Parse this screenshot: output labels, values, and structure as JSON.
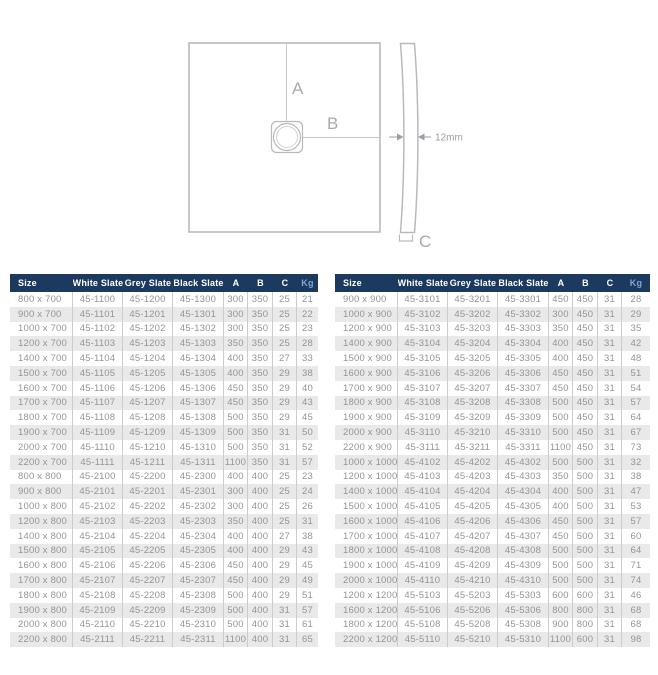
{
  "diagram": {
    "label_a": "A",
    "label_b": "B",
    "label_c": "C",
    "thickness_label": "12mm"
  },
  "table_columns": [
    "Size",
    "White Slate",
    "Grey Slate",
    "Black Slate",
    "A",
    "B",
    "C",
    "Kg"
  ],
  "tables": {
    "left": {
      "rows": [
        [
          "800 x 700",
          "45-1100",
          "45-1200",
          "45-1300",
          "300",
          "350",
          "25",
          "21"
        ],
        [
          "900 x 700",
          "45-1101",
          "45-1201",
          "45-1301",
          "300",
          "350",
          "25",
          "22"
        ],
        [
          "1000 x 700",
          "45-1102",
          "45-1202",
          "45-1302",
          "300",
          "350",
          "25",
          "23"
        ],
        [
          "1200 x 700",
          "45-1103",
          "45-1203",
          "45-1303",
          "350",
          "350",
          "25",
          "28"
        ],
        [
          "1400 x 700",
          "45-1104",
          "45-1204",
          "45-1304",
          "400",
          "350",
          "27",
          "33"
        ],
        [
          "1500 x 700",
          "45-1105",
          "45-1205",
          "45-1305",
          "400",
          "350",
          "29",
          "38"
        ],
        [
          "1600 x 700",
          "45-1106",
          "45-1206",
          "45-1306",
          "450",
          "350",
          "29",
          "40"
        ],
        [
          "1700 x 700",
          "45-1107",
          "45-1207",
          "45-1307",
          "450",
          "350",
          "29",
          "43"
        ],
        [
          "1800 x 700",
          "45-1108",
          "45-1208",
          "45-1308",
          "500",
          "350",
          "29",
          "45"
        ],
        [
          "1900 x 700",
          "45-1109",
          "45-1209",
          "45-1309",
          "500",
          "350",
          "31",
          "50"
        ],
        [
          "2000 x 700",
          "45-1110",
          "45-1210",
          "45-1310",
          "500",
          "350",
          "31",
          "52"
        ],
        [
          "2200 x 700",
          "45-1111",
          "45-1211",
          "45-1311",
          "1100",
          "350",
          "31",
          "57"
        ],
        [
          "800 x 800",
          "45-2100",
          "45-2200",
          "45-2300",
          "400",
          "400",
          "25",
          "23"
        ],
        [
          "900 x 800",
          "45-2101",
          "45-2201",
          "45-2301",
          "300",
          "400",
          "25",
          "24"
        ],
        [
          "1000 x 800",
          "45-2102",
          "45-2202",
          "45-2302",
          "300",
          "400",
          "25",
          "26"
        ],
        [
          "1200 x 800",
          "45-2103",
          "45-2203",
          "45-2303",
          "350",
          "400",
          "25",
          "31"
        ],
        [
          "1400 x 800",
          "45-2104",
          "45-2204",
          "45-2304",
          "400",
          "400",
          "27",
          "38"
        ],
        [
          "1500 x 800",
          "45-2105",
          "45-2205",
          "45-2305",
          "400",
          "400",
          "29",
          "43"
        ],
        [
          "1600 x 800",
          "45-2106",
          "45-2206",
          "45-2306",
          "450",
          "400",
          "29",
          "45"
        ],
        [
          "1700 x 800",
          "45-2107",
          "45-2207",
          "45-2307",
          "450",
          "400",
          "29",
          "49"
        ],
        [
          "1800 x 800",
          "45-2108",
          "45-2208",
          "45-2308",
          "500",
          "400",
          "29",
          "51"
        ],
        [
          "1900 x 800",
          "45-2109",
          "45-2209",
          "45-2309",
          "500",
          "400",
          "31",
          "57"
        ],
        [
          "2000 x 800",
          "45-2110",
          "45-2210",
          "45-2310",
          "500",
          "400",
          "31",
          "61"
        ],
        [
          "2200 x 800",
          "45-2111",
          "45-2211",
          "45-2311",
          "1100",
          "400",
          "31",
          "65"
        ]
      ]
    },
    "right": {
      "rows": [
        [
          "900 x 900",
          "45-3101",
          "45-3201",
          "45-3301",
          "450",
          "450",
          "31",
          "28"
        ],
        [
          "1000 x 900",
          "45-3102",
          "45-3202",
          "45-3302",
          "300",
          "450",
          "31",
          "29"
        ],
        [
          "1200 x 900",
          "45-3103",
          "45-3203",
          "45-3303",
          "350",
          "450",
          "31",
          "35"
        ],
        [
          "1400 x 900",
          "45-3104",
          "45-3204",
          "45-3304",
          "400",
          "450",
          "31",
          "42"
        ],
        [
          "1500 x 900",
          "45-3105",
          "45-3205",
          "45-3305",
          "400",
          "450",
          "31",
          "48"
        ],
        [
          "1600 x 900",
          "45-3106",
          "45-3206",
          "45-3306",
          "450",
          "450",
          "31",
          "51"
        ],
        [
          "1700 x 900",
          "45-3107",
          "45-3207",
          "45-3307",
          "450",
          "450",
          "31",
          "54"
        ],
        [
          "1800 x 900",
          "45-3108",
          "45-3208",
          "45-3308",
          "500",
          "450",
          "31",
          "57"
        ],
        [
          "1900 x 900",
          "45-3109",
          "45-3209",
          "45-3309",
          "500",
          "450",
          "31",
          "64"
        ],
        [
          "2000 x 900",
          "45-3110",
          "45-3210",
          "45-3310",
          "500",
          "450",
          "31",
          "67"
        ],
        [
          "2200 x 900",
          "45-3111",
          "45-3211",
          "45-3311",
          "1100",
          "450",
          "31",
          "73"
        ],
        [
          "1000 x 1000",
          "45-4102",
          "45-4202",
          "45-4302",
          "500",
          "500",
          "31",
          "32"
        ],
        [
          "1200 x 1000",
          "45-4103",
          "45-4203",
          "45-4303",
          "350",
          "500",
          "31",
          "38"
        ],
        [
          "1400 x 1000",
          "45-4104",
          "45-4204",
          "45-4304",
          "400",
          "500",
          "31",
          "47"
        ],
        [
          "1500 x 1000",
          "45-4105",
          "45-4205",
          "45-4305",
          "400",
          "500",
          "31",
          "53"
        ],
        [
          "1600 x 1000",
          "45-4106",
          "45-4206",
          "45-4306",
          "450",
          "500",
          "31",
          "57"
        ],
        [
          "1700 x 1000",
          "45-4107",
          "45-4207",
          "45-4307",
          "450",
          "500",
          "31",
          "60"
        ],
        [
          "1800 x 1000",
          "45-4108",
          "45-4208",
          "45-4308",
          "500",
          "500",
          "31",
          "64"
        ],
        [
          "1900 x 1000",
          "45-4109",
          "45-4209",
          "45-4309",
          "500",
          "500",
          "31",
          "71"
        ],
        [
          "2000 x 1000",
          "45-4110",
          "45-4210",
          "45-4310",
          "500",
          "500",
          "31",
          "74"
        ],
        [
          "1200 x 1200",
          "45-5103",
          "45-5203",
          "45-5303",
          "600",
          "600",
          "31",
          "46"
        ],
        [
          "1600 x 1200",
          "45-5106",
          "45-5206",
          "45-5306",
          "800",
          "800",
          "31",
          "68"
        ],
        [
          "1800 x 1200",
          "45-5108",
          "45-5208",
          "45-5308",
          "900",
          "800",
          "31",
          "68"
        ],
        [
          "2200 x 1200",
          "45-5110",
          "45-5210",
          "45-5310",
          "1100",
          "600",
          "31",
          "98"
        ]
      ]
    }
  },
  "colors": {
    "header_bg": "#1c3a60",
    "header_text": "#ffffff",
    "kg_header_text": "#7fa9d1",
    "row_stripe": "#e9e9e9",
    "body_text": "#949494",
    "column_border": "#cccccc",
    "diagram_line": "#b7babd",
    "diagram_label": "#a8abae"
  }
}
